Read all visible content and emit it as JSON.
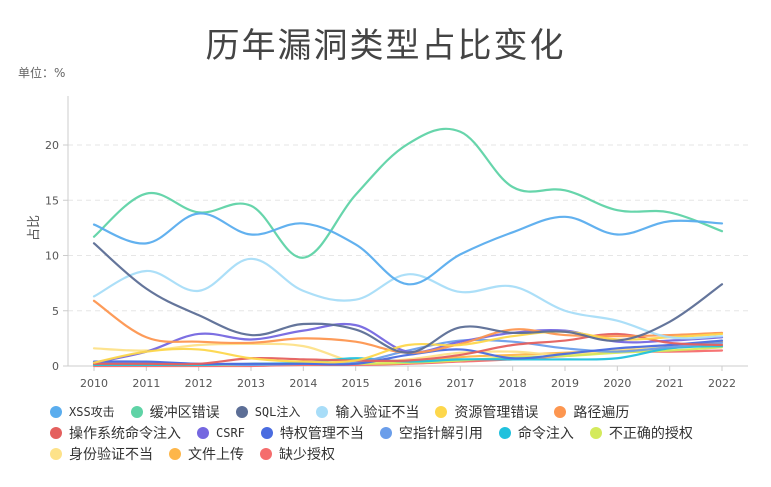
{
  "chart_data": {
    "type": "line",
    "title": "历年漏洞类型占比变化",
    "unit_label": "单位：%",
    "xlabel": "",
    "ylabel": "占比",
    "x": [
      "2010",
      "2011",
      "2012",
      "2013",
      "2014",
      "2015",
      "2016",
      "2017",
      "2018",
      "2019",
      "2020",
      "2021",
      "2022"
    ],
    "yticks": [
      0,
      5,
      10,
      15,
      20
    ],
    "ylim": [
      0,
      23
    ],
    "grid": true,
    "legend_position": "bottom",
    "series": [
      {
        "name": "XSS攻击",
        "color": "#5aadee",
        "values": [
          12.8,
          11.1,
          13.8,
          11.9,
          12.9,
          11.0,
          7.4,
          10.1,
          12.1,
          13.5,
          11.9,
          13.1,
          12.9
        ]
      },
      {
        "name": "缓冲区错误",
        "color": "#5fd3a6",
        "values": [
          11.7,
          15.6,
          13.9,
          14.5,
          9.8,
          15.5,
          20.1,
          21.2,
          16.2,
          15.9,
          14.1,
          13.9,
          12.2
        ]
      },
      {
        "name": "SQL注入",
        "color": "#5c6e96",
        "values": [
          11.1,
          7.0,
          4.6,
          2.8,
          3.8,
          3.3,
          1.2,
          3.5,
          3.0,
          3.1,
          2.3,
          4.0,
          7.4
        ]
      },
      {
        "name": "输入验证不当",
        "color": "#a8ddf8",
        "values": [
          6.3,
          8.6,
          6.8,
          9.7,
          6.8,
          6.0,
          8.3,
          6.7,
          7.2,
          5.0,
          4.1,
          2.6,
          2.7
        ]
      },
      {
        "name": "资源管理错误",
        "color": "#fdd74c",
        "values": [
          0.3,
          1.3,
          1.5,
          0.7,
          0.4,
          0.5,
          1.9,
          1.9,
          2.7,
          3.1,
          2.4,
          2.6,
          2.9
        ]
      },
      {
        "name": "路径遍历",
        "color": "#fd9650",
        "values": [
          5.9,
          2.6,
          2.2,
          2.1,
          2.5,
          2.2,
          1.2,
          2.0,
          3.3,
          2.8,
          2.7,
          2.8,
          3.0
        ]
      },
      {
        "name": "操作系统命令注入",
        "color": "#e4605e",
        "values": [
          0.2,
          0.2,
          0.2,
          0.7,
          0.6,
          0.5,
          0.5,
          1.0,
          1.9,
          2.3,
          2.9,
          2.1,
          1.9
        ]
      },
      {
        "name": "CSRF",
        "color": "#7567e0",
        "values": [
          0.3,
          1.3,
          2.9,
          2.4,
          3.2,
          3.7,
          1.3,
          2.2,
          3.0,
          3.2,
          2.2,
          2.3,
          2.6
        ]
      },
      {
        "name": "特权管理不当",
        "color": "#4a6ce0",
        "values": [
          0.4,
          0.4,
          0.2,
          0.2,
          0.2,
          0.2,
          1.0,
          1.5,
          0.7,
          1.1,
          1.6,
          1.9,
          2.3
        ]
      },
      {
        "name": "空指针解引用",
        "color": "#6b9eea",
        "values": [
          0.3,
          0.3,
          0.2,
          0.1,
          0.2,
          0.3,
          1.4,
          2.3,
          2.2,
          1.6,
          1.3,
          1.7,
          2.1
        ]
      },
      {
        "name": "命令注入",
        "color": "#21c1dd",
        "values": [
          0.1,
          0.1,
          0.1,
          0.2,
          0.3,
          0.7,
          0.4,
          0.6,
          0.6,
          0.6,
          0.7,
          1.6,
          1.8
        ]
      },
      {
        "name": "不正确的授权",
        "color": "#d4ea5c",
        "values": [
          0.1,
          0.1,
          0.1,
          0.1,
          0.2,
          0.2,
          0.3,
          0.5,
          0.8,
          0.9,
          1.2,
          1.4,
          1.7
        ]
      },
      {
        "name": "身份验证不当",
        "color": "#fde289",
        "values": [
          1.6,
          1.4,
          1.9,
          2.0,
          1.8,
          0.4,
          0.6,
          1.2,
          1.3,
          1.0,
          1.5,
          1.8,
          2.0
        ]
      },
      {
        "name": "文件上传",
        "color": "#fdb64a",
        "values": [
          0.1,
          0.1,
          0.1,
          0.2,
          0.2,
          0.2,
          0.3,
          0.8,
          1.0,
          1.2,
          1.4,
          1.6,
          2.2
        ]
      },
      {
        "name": "缺少授权",
        "color": "#f56d6d",
        "values": [
          0.0,
          0.0,
          0.0,
          0.0,
          0.1,
          0.1,
          0.2,
          0.4,
          0.6,
          0.9,
          1.3,
          1.3,
          1.4
        ]
      }
    ]
  }
}
